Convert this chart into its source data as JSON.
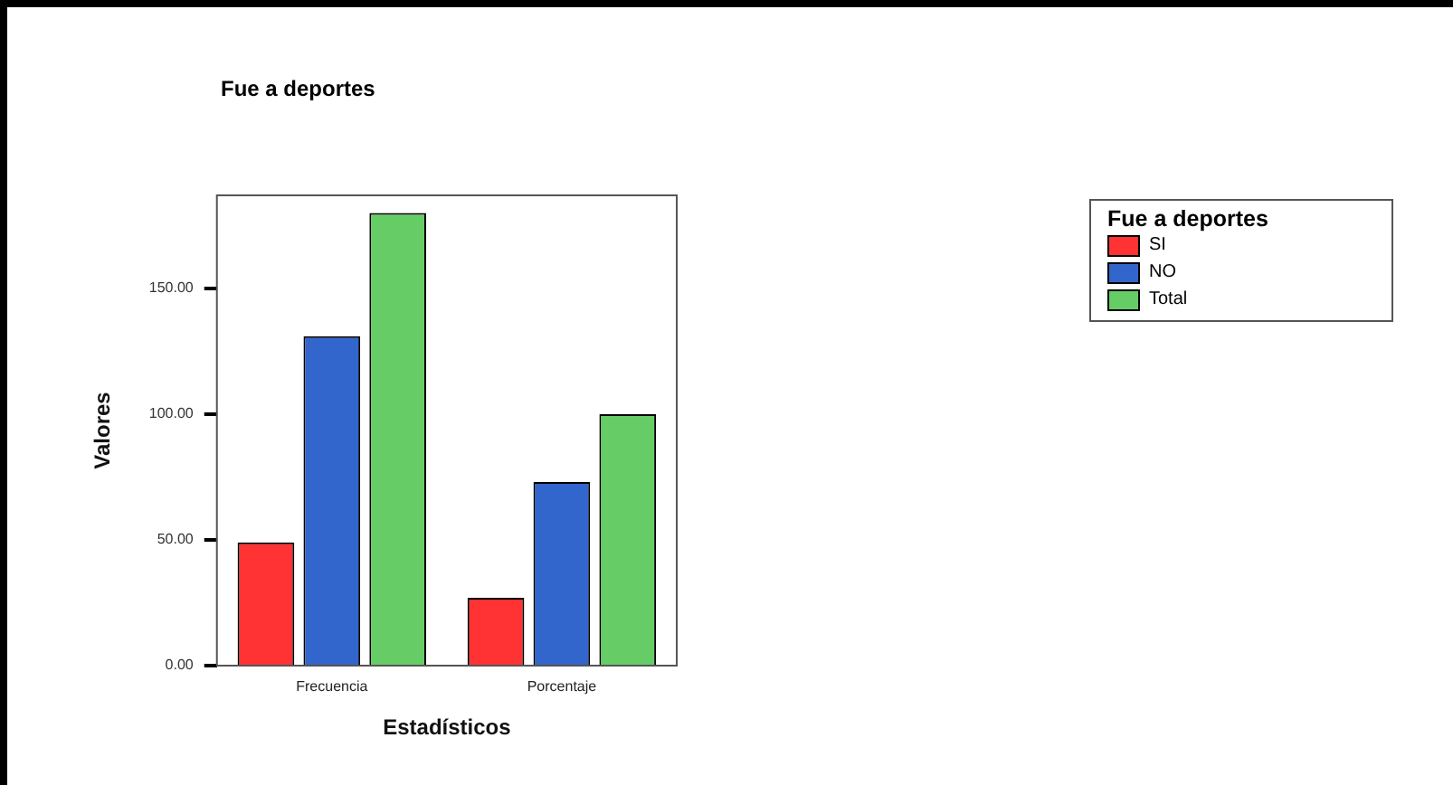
{
  "chart_data": {
    "type": "bar",
    "title": "Fue a deportes",
    "xlabel": "Estadísticos",
    "ylabel": "Valores",
    "legend_title": "Fue a deportes",
    "categories": [
      "Frecuencia",
      "Porcentaje"
    ],
    "series": [
      {
        "name": "SI",
        "color": "#ff3333",
        "values": [
          49,
          27
        ]
      },
      {
        "name": "NO",
        "color": "#3366cc",
        "values": [
          131,
          73
        ]
      },
      {
        "name": "Total",
        "color": "#66cc66",
        "values": [
          180,
          100
        ]
      }
    ],
    "ylim": [
      0,
      187
    ],
    "yticks": [
      {
        "value": 0,
        "label": "0.00"
      },
      {
        "value": 50,
        "label": "50.00"
      },
      {
        "value": 100,
        "label": "100.00"
      },
      {
        "value": 150,
        "label": "150.00"
      }
    ],
    "grid": false,
    "legend": "right"
  }
}
